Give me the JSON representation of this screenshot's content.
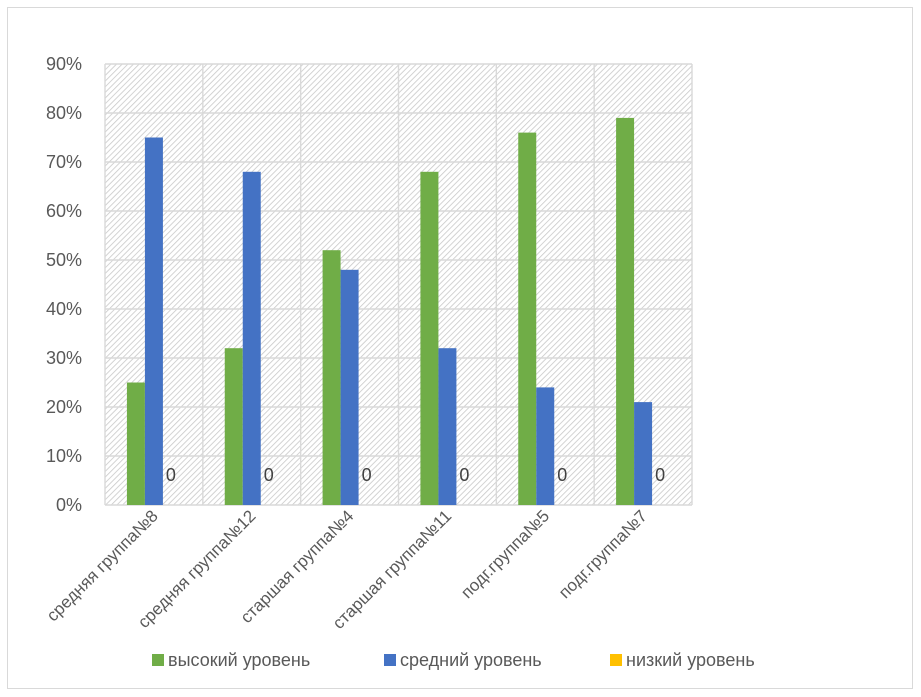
{
  "chart_data": {
    "type": "bar",
    "categories": [
      "средняя группа№8",
      "средняя группа№12",
      "старшая группа№4",
      "старшая группа№11",
      "подг.группа№5",
      "подг.группа№7"
    ],
    "series": [
      {
        "name": "высокий уровень",
        "color": "#70ad47",
        "values": [
          25,
          32,
          52,
          68,
          76,
          79
        ]
      },
      {
        "name": "средний уровень",
        "color": "#4472c4",
        "values": [
          75,
          68,
          48,
          32,
          24,
          21
        ]
      },
      {
        "name": "низкий уровень",
        "color": "#ffc000",
        "values": [
          0,
          0,
          0,
          0,
          0,
          0
        ]
      }
    ],
    "data_labels": [
      "0",
      "0",
      "0",
      "0",
      "0",
      "0"
    ],
    "yticks": [
      "0%",
      "10%",
      "20%",
      "30%",
      "40%",
      "50%",
      "60%",
      "70%",
      "80%",
      "90%"
    ],
    "ylim": [
      0,
      90
    ],
    "grid": true,
    "legend_position": "bottom"
  }
}
